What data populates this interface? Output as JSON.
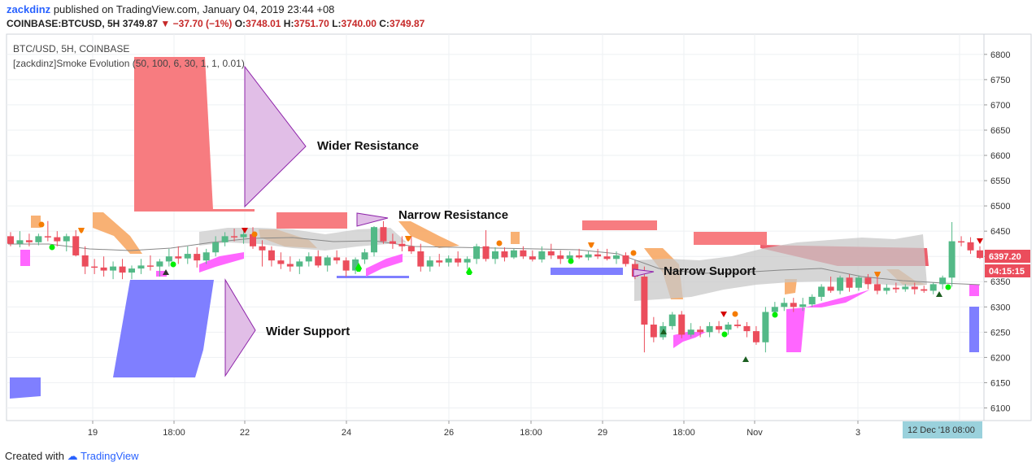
{
  "header": {
    "user": "zackdinz",
    "published": "published on TradingView.com, January 04, 2019 23:44 +08",
    "symbol": "COINBASE:BTCUSD, 5H",
    "last": "3749.87",
    "arrow": "▼",
    "change": "−37.70 (−1%)",
    "o_label": "O:",
    "o_val": "3748.01",
    "h_label": "H:",
    "h_val": "3751.70",
    "l_label": "L:",
    "l_val": "3740.00",
    "c_label": "C:",
    "c_val": "3749.87"
  },
  "footer": {
    "created": "Created with",
    "brand": "TradingView"
  },
  "chart_data": {
    "type": "candlestick",
    "title": "BTC/USD, 5H, COINBASE",
    "indicator": "[zackdinz]Smoke Evolution (50, 100, 6, 30, 1, 1, 0.01)",
    "ylim": [
      6075,
      6840
    ],
    "yticks": [
      6100,
      6150,
      6200,
      6250,
      6300,
      6350,
      6400,
      6450,
      6500,
      6550,
      6600,
      6650,
      6700,
      6750,
      6800
    ],
    "xticks": [
      "19",
      "18:00",
      "22",
      "24",
      "26",
      "18:00",
      "29",
      "18:00",
      "Nov",
      "3"
    ],
    "price_tag": "6397.20",
    "time_tag": "04:15:15",
    "cursor_label": "12 Dec '18   08:00",
    "colors": {
      "up": "#53b987",
      "down": "#eb4d5c",
      "resistance": "#f77c80",
      "support": "#7f7fff",
      "orange": "#f7a35c",
      "magenta": "#ff66ff",
      "cloud": "#c8c8c8",
      "arrow": "#8e24aa",
      "arrowFill": "#e1bee7"
    },
    "annotations": [
      {
        "text": "Wider Resistance"
      },
      {
        "text": "Narrow Resistance"
      },
      {
        "text": "Narrow Support"
      },
      {
        "text": "Wider Support"
      }
    ],
    "candles": [
      [
        6440,
        6448,
        6420,
        6425
      ],
      [
        6425,
        6450,
        6418,
        6432
      ],
      [
        6432,
        6445,
        6420,
        6428
      ],
      [
        6428,
        6445,
        6422,
        6440
      ],
      [
        6440,
        6470,
        6430,
        6438
      ],
      [
        6438,
        6450,
        6420,
        6430
      ],
      [
        6430,
        6445,
        6410,
        6440
      ],
      [
        6440,
        6452,
        6400,
        6402
      ],
      [
        6402,
        6420,
        6365,
        6380
      ],
      [
        6380,
        6395,
        6365,
        6378
      ],
      [
        6378,
        6400,
        6360,
        6372
      ],
      [
        6372,
        6390,
        6355,
        6380
      ],
      [
        6380,
        6395,
        6355,
        6368
      ],
      [
        6368,
        6382,
        6355,
        6376
      ],
      [
        6376,
        6395,
        6365,
        6382
      ],
      [
        6382,
        6402,
        6372,
        6380
      ],
      [
        6380,
        6395,
        6360,
        6390
      ],
      [
        6390,
        6415,
        6380,
        6400
      ],
      [
        6400,
        6420,
        6385,
        6396
      ],
      [
        6396,
        6420,
        6385,
        6405
      ],
      [
        6405,
        6418,
        6378,
        6392
      ],
      [
        6392,
        6415,
        6385,
        6408
      ],
      [
        6408,
        6440,
        6400,
        6428
      ],
      [
        6428,
        6448,
        6420,
        6440
      ],
      [
        6440,
        6455,
        6430,
        6438
      ],
      [
        6438,
        6450,
        6425,
        6444
      ],
      [
        6444,
        6458,
        6415,
        6420
      ],
      [
        6420,
        6432,
        6380,
        6412
      ],
      [
        6412,
        6420,
        6380,
        6392
      ],
      [
        6392,
        6408,
        6375,
        6385
      ],
      [
        6385,
        6400,
        6370,
        6380
      ],
      [
        6380,
        6395,
        6365,
        6390
      ],
      [
        6390,
        6408,
        6380,
        6400
      ],
      [
        6400,
        6412,
        6378,
        6382
      ],
      [
        6382,
        6402,
        6370,
        6398
      ],
      [
        6398,
        6412,
        6385,
        6392
      ],
      [
        6392,
        6398,
        6360,
        6372
      ],
      [
        6372,
        6398,
        6365,
        6394
      ],
      [
        6394,
        6415,
        6385,
        6408
      ],
      [
        6408,
        6460,
        6400,
        6458
      ],
      [
        6458,
        6470,
        6425,
        6430
      ],
      [
        6430,
        6445,
        6415,
        6425
      ],
      [
        6425,
        6440,
        6410,
        6420
      ],
      [
        6420,
        6440,
        6405,
        6410
      ],
      [
        6410,
        6425,
        6370,
        6380
      ],
      [
        6380,
        6400,
        6370,
        6392
      ],
      [
        6392,
        6405,
        6380,
        6388
      ],
      [
        6388,
        6402,
        6380,
        6396
      ],
      [
        6396,
        6410,
        6380,
        6388
      ],
      [
        6388,
        6400,
        6375,
        6395
      ],
      [
        6395,
        6425,
        6385,
        6420
      ],
      [
        6420,
        6452,
        6390,
        6395
      ],
      [
        6395,
        6418,
        6385,
        6410
      ],
      [
        6410,
        6418,
        6390,
        6398
      ],
      [
        6398,
        6415,
        6395,
        6412
      ],
      [
        6412,
        6420,
        6395,
        6400
      ],
      [
        6400,
        6412,
        6390,
        6394
      ],
      [
        6394,
        6420,
        6388,
        6410
      ],
      [
        6410,
        6425,
        6395,
        6402
      ],
      [
        6402,
        6412,
        6385,
        6395
      ],
      [
        6395,
        6410,
        6388,
        6402
      ],
      [
        6402,
        6415,
        6395,
        6398
      ],
      [
        6398,
        6410,
        6392,
        6404
      ],
      [
        6404,
        6415,
        6395,
        6400
      ],
      [
        6400,
        6415,
        6392,
        6395
      ],
      [
        6395,
        6410,
        6385,
        6402
      ],
      [
        6402,
        6408,
        6380,
        6385
      ],
      [
        6385,
        6392,
        6355,
        6360
      ],
      [
        6360,
        6380,
        6210,
        6265
      ],
      [
        6265,
        6280,
        6230,
        6240
      ],
      [
        6240,
        6270,
        6235,
        6262
      ],
      [
        6262,
        6290,
        6255,
        6285
      ],
      [
        6285,
        6292,
        6238,
        6245
      ],
      [
        6245,
        6268,
        6240,
        6255
      ],
      [
        6255,
        6262,
        6240,
        6250
      ],
      [
        6250,
        6270,
        6240,
        6262
      ],
      [
        6262,
        6272,
        6248,
        6255
      ],
      [
        6255,
        6270,
        6245,
        6265
      ],
      [
        6265,
        6275,
        6258,
        6262
      ],
      [
        6262,
        6270,
        6240,
        6252
      ],
      [
        6252,
        6262,
        6225,
        6230
      ],
      [
        6230,
        6300,
        6210,
        6290
      ],
      [
        6290,
        6310,
        6280,
        6300
      ],
      [
        6300,
        6318,
        6292,
        6308
      ],
      [
        6308,
        6318,
        6290,
        6300
      ],
      [
        6300,
        6318,
        6292,
        6305
      ],
      [
        6305,
        6325,
        6300,
        6320
      ],
      [
        6320,
        6345,
        6312,
        6340
      ],
      [
        6340,
        6360,
        6328,
        6332
      ],
      [
        6332,
        6362,
        6325,
        6358
      ],
      [
        6358,
        6365,
        6330,
        6338
      ],
      [
        6338,
        6362,
        6332,
        6358
      ],
      [
        6358,
        6365,
        6335,
        6345
      ],
      [
        6345,
        6360,
        6325,
        6332
      ],
      [
        6332,
        6345,
        6325,
        6338
      ],
      [
        6338,
        6348,
        6328,
        6335
      ],
      [
        6335,
        6345,
        6330,
        6340
      ],
      [
        6340,
        6348,
        6325,
        6335
      ],
      [
        6335,
        6342,
        6328,
        6332
      ],
      [
        6332,
        6348,
        6325,
        6345
      ],
      [
        6345,
        6362,
        6335,
        6358
      ],
      [
        6358,
        6468,
        6340,
        6430
      ],
      [
        6430,
        6440,
        6420,
        6428
      ],
      [
        6428,
        6438,
        6405,
        6412
      ],
      [
        6412,
        6420,
        6395,
        6397
      ]
    ]
  }
}
